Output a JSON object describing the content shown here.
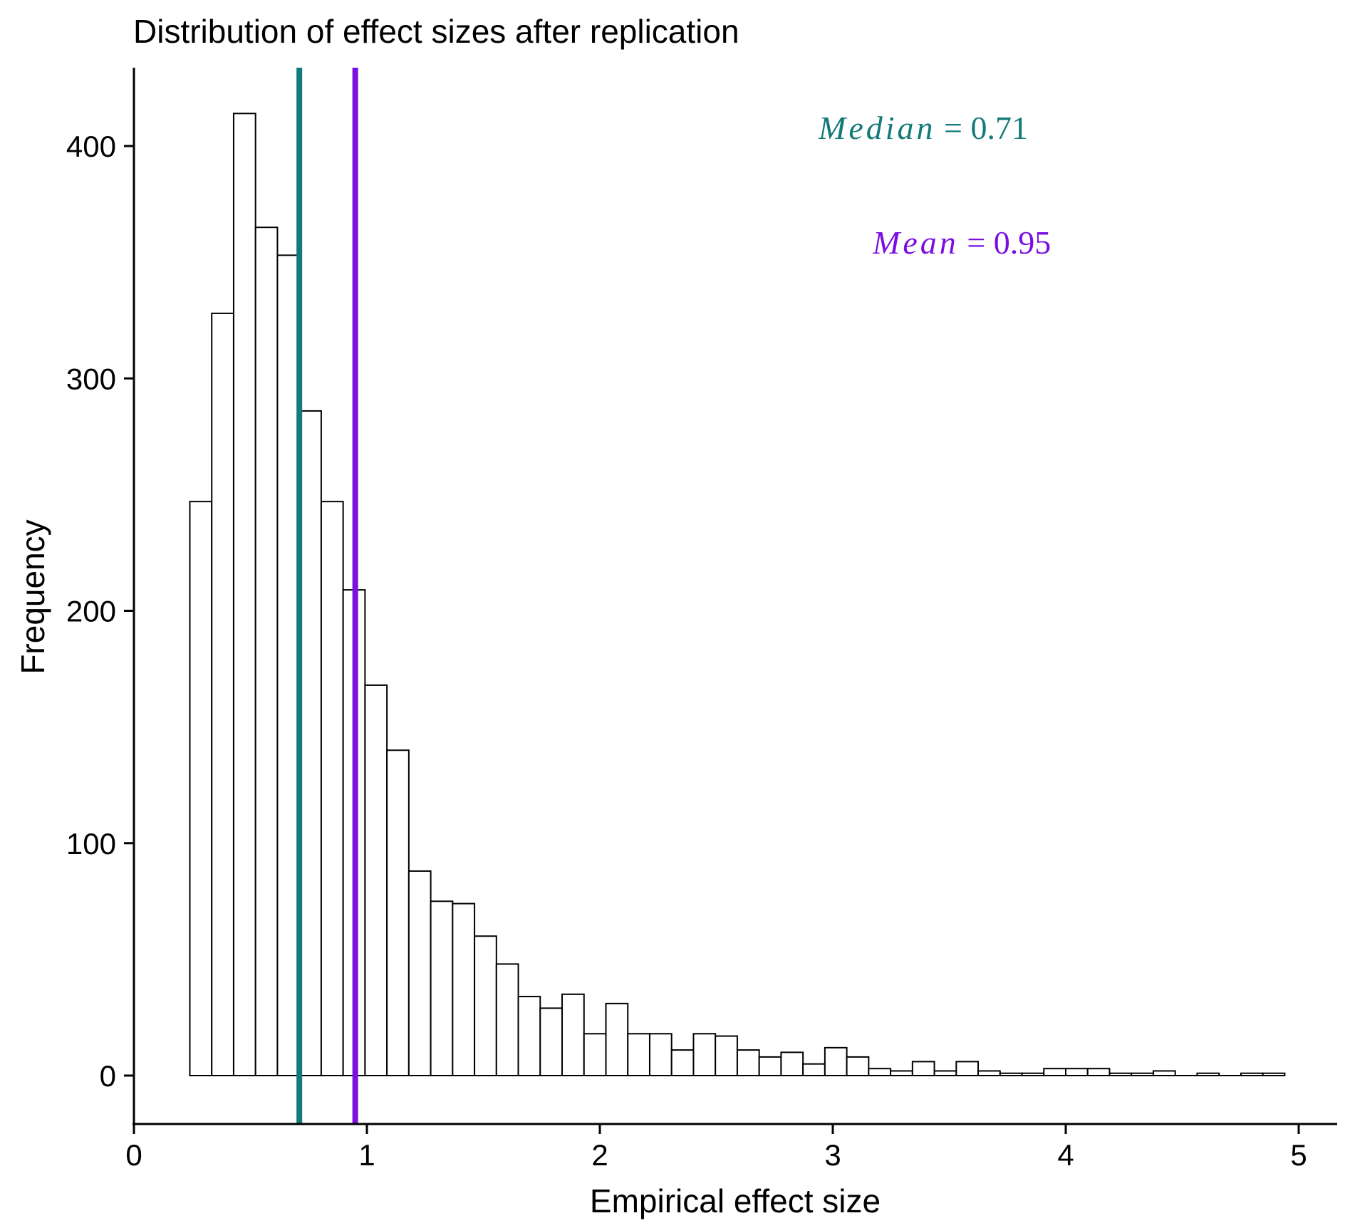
{
  "chart_data": {
    "type": "bar",
    "title": "Distribution of effect sizes after replication",
    "xlabel": "Empirical effect size",
    "ylabel": "Frequency",
    "xlim": [
      0,
      5.15
    ],
    "ylim": [
      -20,
      435
    ],
    "x_ticks": [
      "0",
      "1",
      "2",
      "3",
      "4",
      "5"
    ],
    "y_ticks": [
      "0",
      "100",
      "200",
      "300",
      "400"
    ],
    "grid": false,
    "bin_start": 0.24,
    "bin_width": 0.094,
    "values": [
      247,
      328,
      414,
      365,
      353,
      286,
      247,
      209,
      168,
      140,
      88,
      75,
      74,
      60,
      48,
      34,
      29,
      35,
      18,
      31,
      18,
      18,
      11,
      18,
      17,
      11,
      8,
      10,
      5,
      12,
      8,
      3,
      2,
      6,
      2,
      6,
      2,
      1,
      1,
      3,
      3,
      3,
      1,
      1,
      2,
      0,
      1,
      0,
      1,
      1
    ],
    "vlines": [
      {
        "name": "Median",
        "x": 0.71,
        "color": "#127a78"
      },
      {
        "name": "Mean",
        "x": 0.95,
        "color": "#7a0fe0"
      }
    ]
  },
  "annotations": {
    "median": {
      "label": "Median",
      "value_text": " = 0.71",
      "color": "#127a78"
    },
    "mean": {
      "label": "Mean",
      "value_text": " = 0.95",
      "color": "#7a0fe0"
    }
  }
}
